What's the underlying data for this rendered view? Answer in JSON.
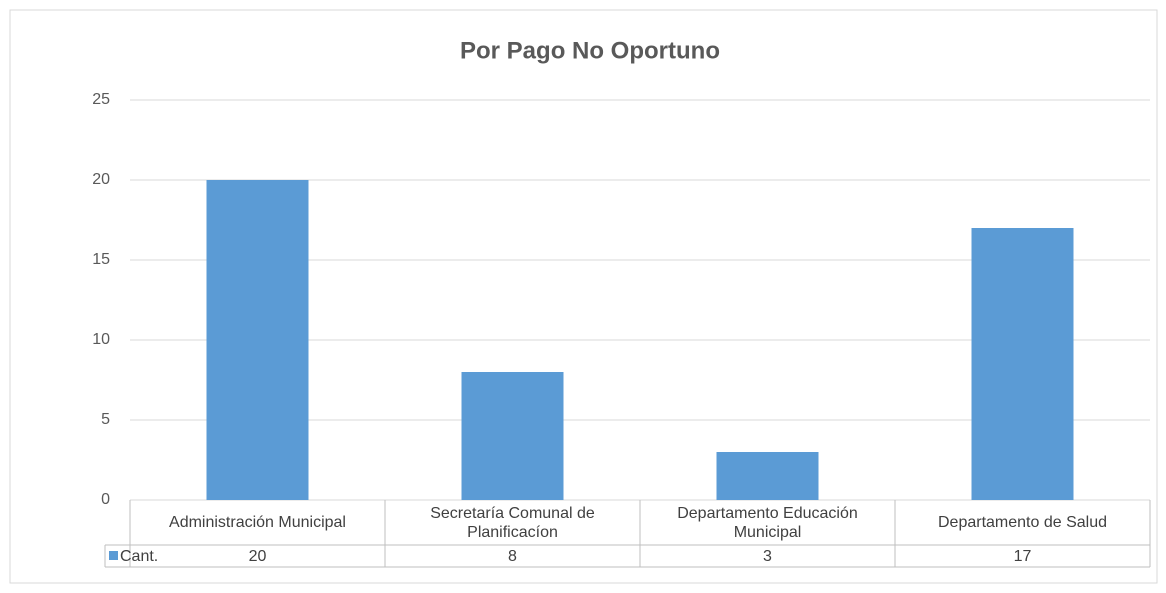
{
  "chart_data": {
    "type": "bar",
    "title": "Por Pago No Oportuno",
    "categories": [
      "Administración Municipal",
      "Secretaría Comunal de Planificacíon",
      "Departamento Educación Municipal",
      "Departamento de Salud"
    ],
    "series": [
      {
        "name": "Cant.",
        "color": "#5b9bd5",
        "values": [
          20,
          8,
          3,
          17
        ]
      }
    ],
    "ylim": [
      0,
      25
    ],
    "yticks": [
      0,
      5,
      10,
      15,
      20,
      25
    ],
    "grid": true,
    "data_table": true
  }
}
